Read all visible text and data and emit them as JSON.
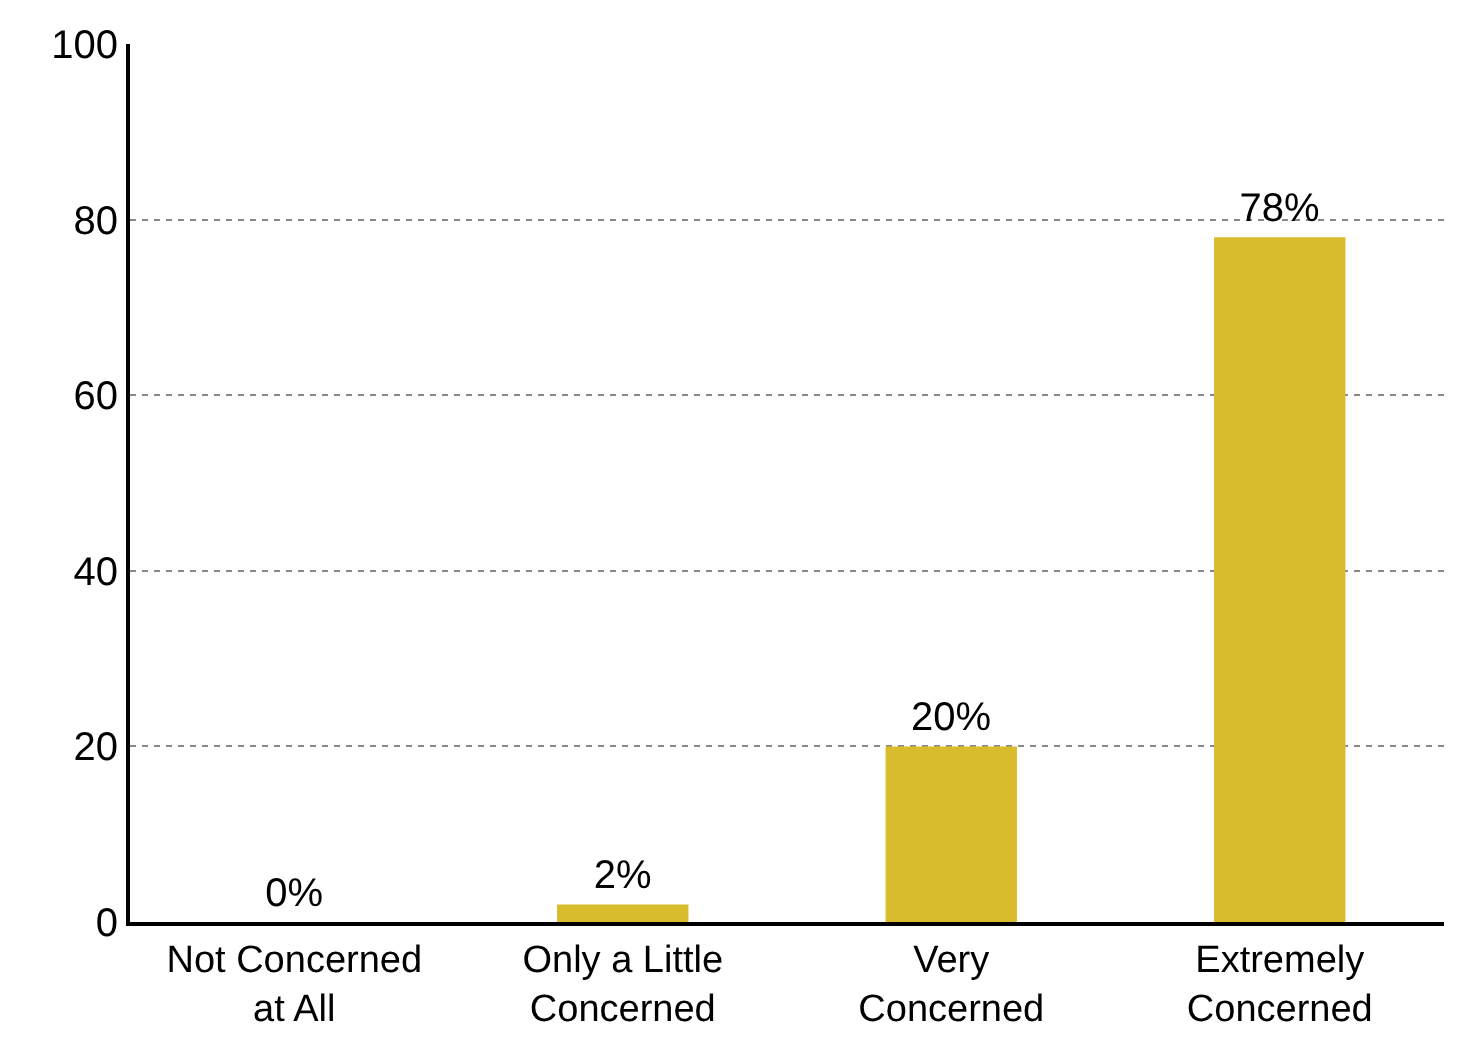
{
  "chart_data": {
    "type": "bar",
    "categories": [
      "Not Concerned at All",
      "Only a Little Concerned",
      "Very Concerned",
      "Extremely Concerned"
    ],
    "values": [
      0,
      2,
      20,
      78
    ],
    "value_labels": [
      "0%",
      "2%",
      "20%",
      "78%"
    ],
    "color": "#d9bc2c",
    "ylim": [
      0,
      100
    ],
    "yticks": [
      0,
      20,
      40,
      60,
      80,
      100
    ],
    "grid": "y"
  }
}
